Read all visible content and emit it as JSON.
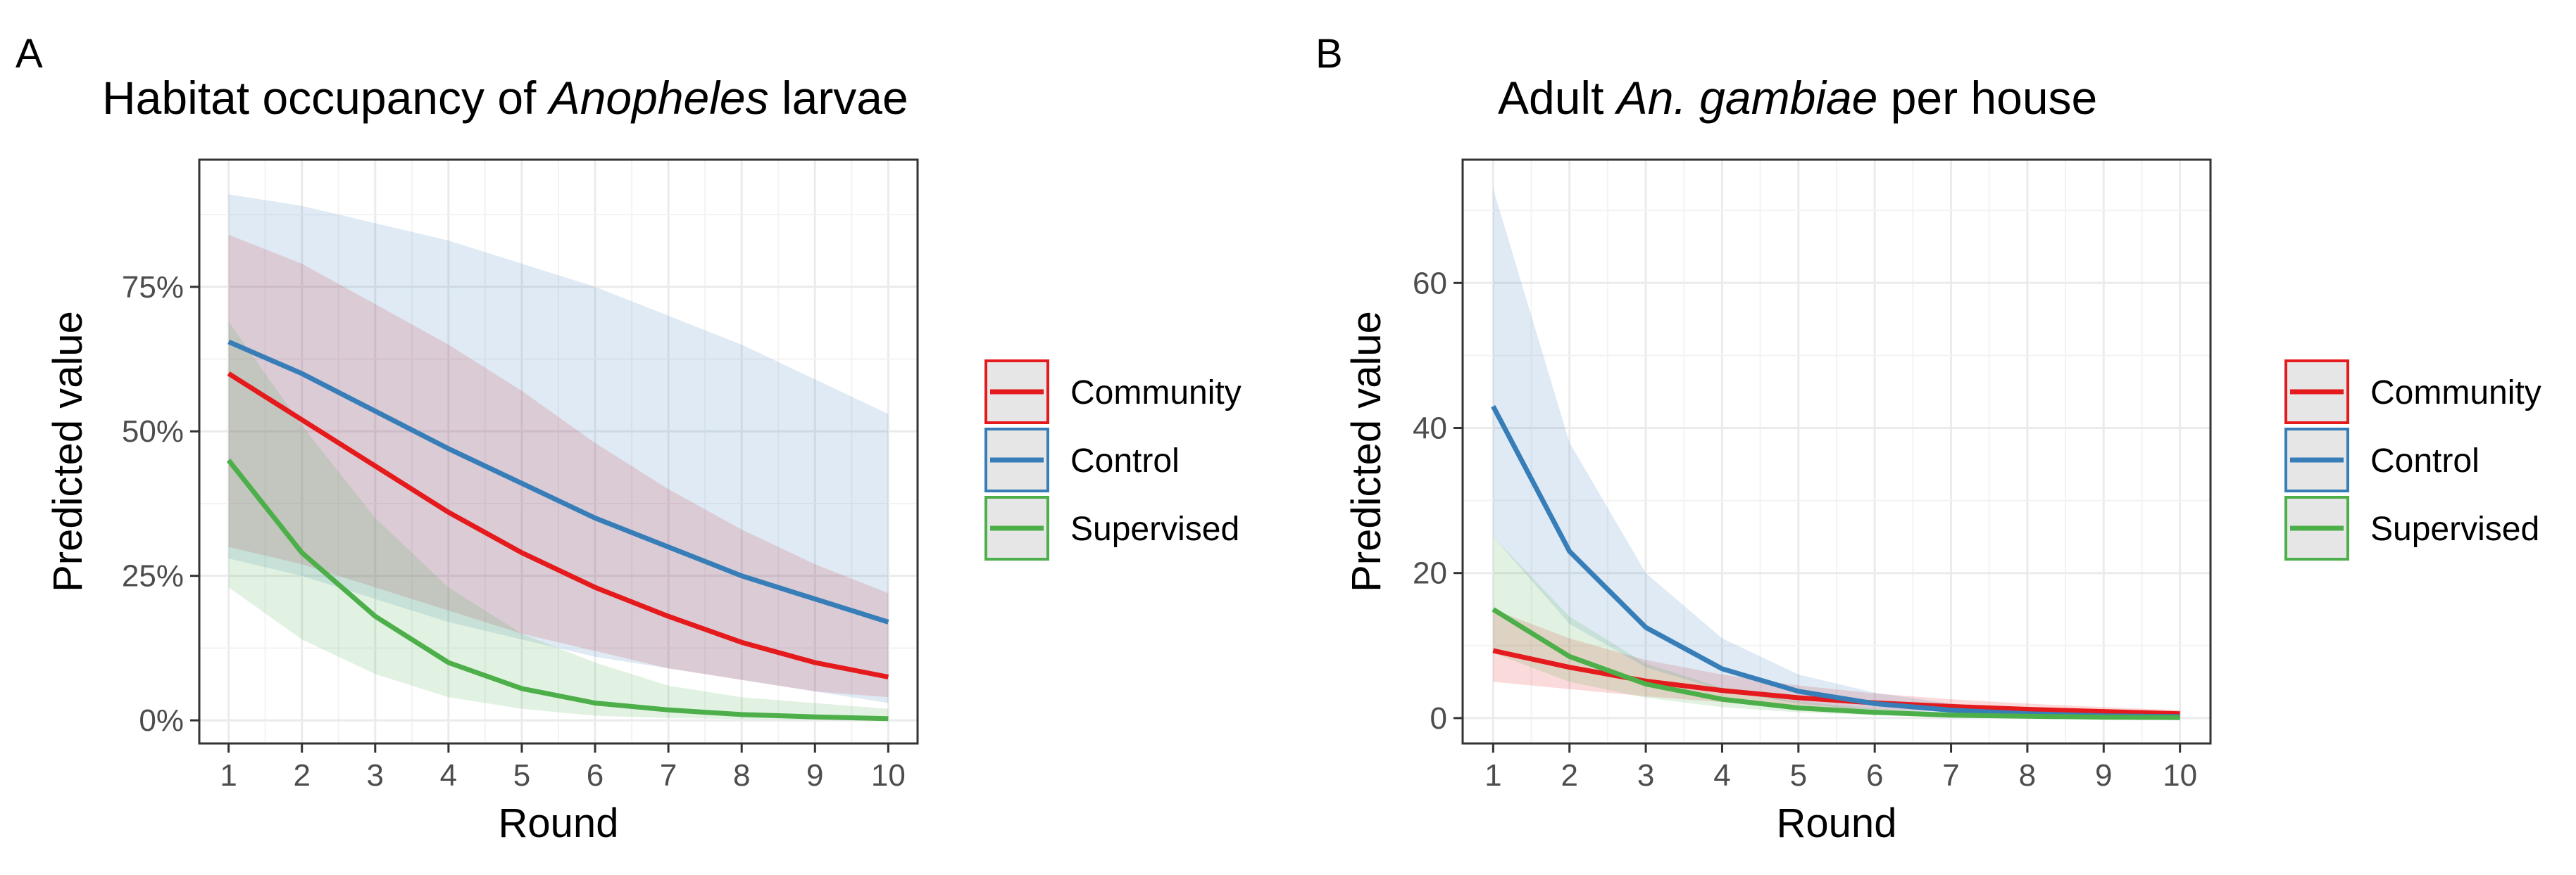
{
  "chart_data": [
    {
      "panel": "A",
      "type": "line",
      "title_parts": [
        "Habitat occupancy of ",
        "Anopheles",
        " larvae"
      ],
      "xlabel": "Round",
      "ylabel": "Predicted value",
      "x": [
        1,
        2,
        3,
        4,
        5,
        6,
        7,
        8,
        9,
        10
      ],
      "xlim": [
        0.6,
        10.4
      ],
      "ylim": [
        -0.04,
        0.97
      ],
      "yticks": [
        0,
        0.25,
        0.5,
        0.75
      ],
      "ytick_labels": [
        "0%",
        "25%",
        "50%",
        "75%"
      ],
      "grid": true,
      "legend_position": "right",
      "series": [
        {
          "name": "Community",
          "color": "#E41A1C",
          "values": [
            0.6,
            0.52,
            0.44,
            0.36,
            0.29,
            0.23,
            0.18,
            0.135,
            0.1,
            0.075
          ],
          "lower": [
            0.3,
            0.27,
            0.23,
            0.19,
            0.15,
            0.12,
            0.09,
            0.07,
            0.05,
            0.04
          ],
          "upper": [
            0.84,
            0.79,
            0.72,
            0.65,
            0.57,
            0.48,
            0.4,
            0.33,
            0.27,
            0.22
          ]
        },
        {
          "name": "Control",
          "color": "#377EB8",
          "values": [
            0.655,
            0.6,
            0.535,
            0.47,
            0.41,
            0.35,
            0.3,
            0.25,
            0.21,
            0.17
          ],
          "lower": [
            0.28,
            0.25,
            0.21,
            0.17,
            0.14,
            0.11,
            0.09,
            0.07,
            0.05,
            0.03
          ],
          "upper": [
            0.91,
            0.89,
            0.86,
            0.83,
            0.79,
            0.75,
            0.7,
            0.65,
            0.59,
            0.53
          ]
        },
        {
          "name": "Supervised",
          "color": "#4DAF4A",
          "values": [
            0.45,
            0.29,
            0.18,
            0.1,
            0.055,
            0.03,
            0.018,
            0.01,
            0.006,
            0.003
          ],
          "lower": [
            0.23,
            0.14,
            0.08,
            0.04,
            0.02,
            0.008,
            0.004,
            0.002,
            0.001,
            0.0005
          ],
          "upper": [
            0.69,
            0.51,
            0.35,
            0.23,
            0.15,
            0.1,
            0.06,
            0.04,
            0.03,
            0.02
          ]
        }
      ]
    },
    {
      "panel": "B",
      "type": "line",
      "title_parts": [
        "Adult ",
        "An. gambiae",
        " per house"
      ],
      "xlabel": "Round",
      "ylabel": "Predicted value",
      "x": [
        1,
        2,
        3,
        4,
        5,
        6,
        7,
        8,
        9,
        10
      ],
      "xlim": [
        0.6,
        10.4
      ],
      "ylim": [
        -3.5,
        77
      ],
      "yticks": [
        0,
        20,
        40,
        60
      ],
      "ytick_labels": [
        "0",
        "20",
        "40",
        "60"
      ],
      "grid": true,
      "legend_position": "right",
      "series": [
        {
          "name": "Community",
          "color": "#E41A1C",
          "values": [
            9.3,
            7.0,
            5.1,
            3.8,
            2.8,
            2.1,
            1.6,
            1.2,
            0.9,
            0.6
          ],
          "lower": [
            5.0,
            4.0,
            3.0,
            2.2,
            1.6,
            1.2,
            0.9,
            0.6,
            0.4,
            0.3
          ],
          "upper": [
            15.0,
            11.0,
            8.0,
            6.0,
            4.5,
            3.4,
            2.6,
            2.0,
            1.5,
            1.1
          ]
        },
        {
          "name": "Control",
          "color": "#377EB8",
          "values": [
            43.0,
            23.0,
            12.5,
            6.8,
            3.7,
            2.0,
            1.1,
            0.6,
            0.3,
            0.2
          ],
          "lower": [
            25.0,
            13.0,
            7.0,
            3.8,
            2.0,
            1.0,
            0.5,
            0.3,
            0.15,
            0.08
          ],
          "upper": [
            73.0,
            38.0,
            20.0,
            11.0,
            6.0,
            3.5,
            2.0,
            1.1,
            0.6,
            0.4
          ]
        },
        {
          "name": "Supervised",
          "color": "#4DAF4A",
          "values": [
            15.0,
            8.5,
            4.7,
            2.6,
            1.4,
            0.8,
            0.4,
            0.25,
            0.13,
            0.07
          ],
          "lower": [
            9.0,
            5.0,
            2.8,
            1.5,
            0.8,
            0.4,
            0.2,
            0.1,
            0.05,
            0.03
          ],
          "upper": [
            25.0,
            14.0,
            7.5,
            4.2,
            2.3,
            1.3,
            0.7,
            0.4,
            0.22,
            0.12
          ]
        }
      ]
    }
  ]
}
